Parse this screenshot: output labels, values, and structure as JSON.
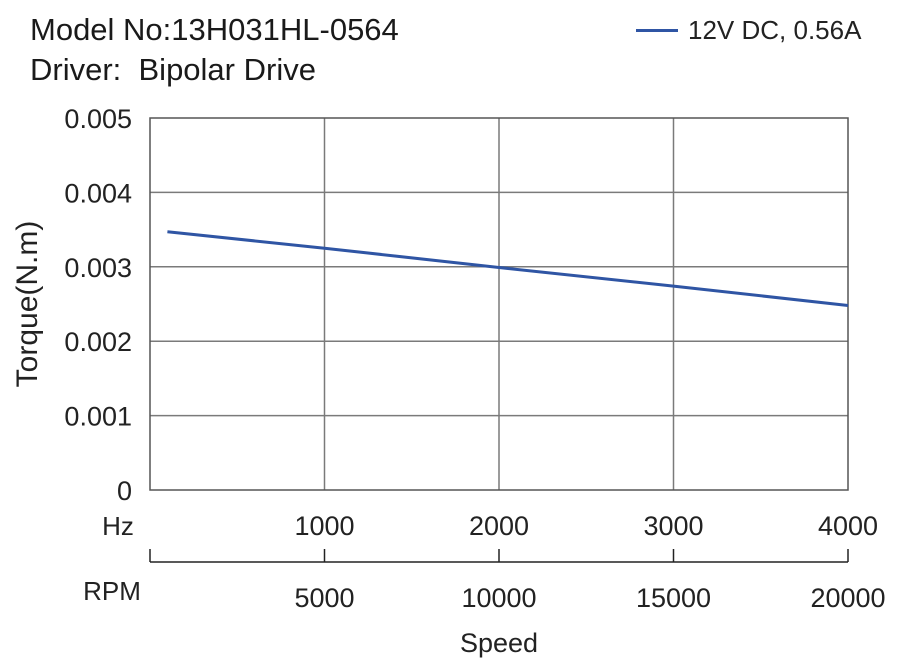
{
  "header": {
    "title_line1": "Model No:13H031HL-0564",
    "title_line2": "Driver:  Bipolar Drive"
  },
  "chart_data": {
    "type": "line",
    "ylabel": "Torque(N.m)",
    "xlabel": "Speed",
    "ylim": [
      0,
      0.005
    ],
    "y_ticks": [
      "0",
      "0.001",
      "0.002",
      "0.003",
      "0.004",
      "0.005"
    ],
    "xlim_hz": [
      0,
      4000
    ],
    "x_axis_hz": {
      "label": "Hz",
      "ticks": [
        1000,
        2000,
        3000,
        4000
      ]
    },
    "x_axis_rpm": {
      "label": "RPM",
      "ticks": [
        5000,
        10000,
        15000,
        20000
      ]
    },
    "grid": true,
    "legend_position": "top-right",
    "series": [
      {
        "name": "12V DC, 0.56A",
        "color": "#2f55a4",
        "x_hz": [
          100,
          1000,
          2000,
          3000,
          4000
        ],
        "y": [
          0.00347,
          0.00325,
          0.00299,
          0.00274,
          0.00248
        ]
      }
    ]
  }
}
